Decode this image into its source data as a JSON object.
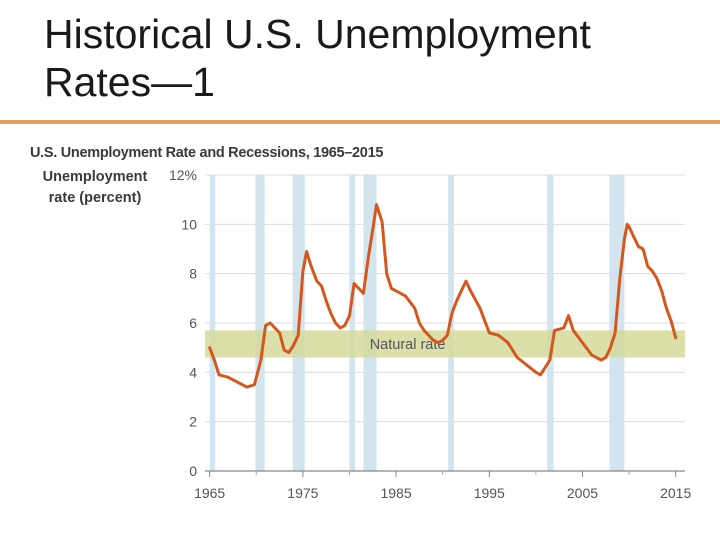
{
  "slide": {
    "title_line1": "Historical U.S. Unemployment",
    "title_line2": "Rates—1"
  },
  "chart_data": {
    "type": "line",
    "title": "U.S. Unemployment Rate and Recessions, 1965–2015",
    "ylabel_line1": "Unemployment",
    "ylabel_line2": "rate (percent)",
    "xlim": [
      1964.5,
      2016
    ],
    "ylim": [
      0,
      12
    ],
    "x_ticks": [
      1965,
      1975,
      1985,
      1995,
      2005,
      2015
    ],
    "x_tick_labels": [
      "1965",
      "1975",
      "1985",
      "1995",
      "2005",
      "2015"
    ],
    "y_ticks": [
      0,
      2,
      4,
      6,
      8,
      10,
      12
    ],
    "y_tick_labels": [
      "0",
      "2",
      "4",
      "6",
      "8",
      "10",
      "12%"
    ],
    "grid": true,
    "natural_rate_band": {
      "label": "Natural rate",
      "y_range": [
        4.6,
        5.7
      ]
    },
    "recessions": [
      [
        1965.0,
        1965.6
      ],
      [
        1969.9,
        1970.9
      ],
      [
        1973.9,
        1975.2
      ],
      [
        1980.0,
        1980.6
      ],
      [
        1981.5,
        1982.9
      ],
      [
        1990.6,
        1991.2
      ],
      [
        2001.2,
        2001.9
      ],
      [
        2007.9,
        2009.5
      ]
    ],
    "series": [
      {
        "x": [
          1965.0,
          1965.5,
          1966.0,
          1967.0,
          1968.0,
          1969.0,
          1969.8,
          1970.5,
          1971.0,
          1971.5,
          1972.0,
          1972.5,
          1973.0,
          1973.5,
          1974.0,
          1974.5,
          1975.0,
          1975.4,
          1975.8,
          1976.5,
          1977.0,
          1977.5,
          1978.0,
          1978.5,
          1979.0,
          1979.5,
          1980.0,
          1980.5,
          1981.0,
          1981.5,
          1982.0,
          1982.5,
          1982.9,
          1983.5,
          1984.0,
          1984.5,
          1985.0,
          1986.0,
          1987.0,
          1987.5,
          1988.0,
          1989.0,
          1989.5,
          1990.0,
          1990.5,
          1991.0,
          1991.5,
          1992.0,
          1992.5,
          1993.0,
          1994.0,
          1995.0,
          1996.0,
          1997.0,
          1998.0,
          1999.0,
          2000.0,
          2000.5,
          2001.0,
          2001.5,
          2002.0,
          2003.0,
          2003.5,
          2004.0,
          2005.0,
          2006.0,
          2007.0,
          2007.5,
          2008.0,
          2008.5,
          2009.0,
          2009.5,
          2009.8,
          2010.0,
          2010.5,
          2011.0,
          2011.5,
          2012.0,
          2012.5,
          2013.0,
          2013.5,
          2014.0,
          2014.5,
          2015.0
        ],
        "values": [
          5.0,
          4.5,
          3.9,
          3.8,
          3.6,
          3.4,
          3.5,
          4.5,
          5.9,
          6.0,
          5.8,
          5.6,
          4.9,
          4.8,
          5.1,
          5.5,
          8.1,
          8.9,
          8.4,
          7.7,
          7.5,
          6.9,
          6.4,
          6.0,
          5.8,
          5.9,
          6.3,
          7.6,
          7.4,
          7.2,
          8.6,
          9.8,
          10.8,
          10.1,
          8.0,
          7.4,
          7.3,
          7.1,
          6.6,
          6.0,
          5.7,
          5.3,
          5.2,
          5.3,
          5.5,
          6.4,
          6.9,
          7.3,
          7.7,
          7.3,
          6.6,
          5.6,
          5.5,
          5.2,
          4.6,
          4.3,
          4.0,
          3.9,
          4.2,
          4.5,
          5.7,
          5.8,
          6.3,
          5.7,
          5.2,
          4.7,
          4.5,
          4.6,
          5.0,
          5.6,
          7.8,
          9.4,
          10.0,
          9.9,
          9.5,
          9.1,
          9.0,
          8.3,
          8.1,
          7.8,
          7.3,
          6.6,
          6.1,
          5.4
        ]
      }
    ]
  }
}
